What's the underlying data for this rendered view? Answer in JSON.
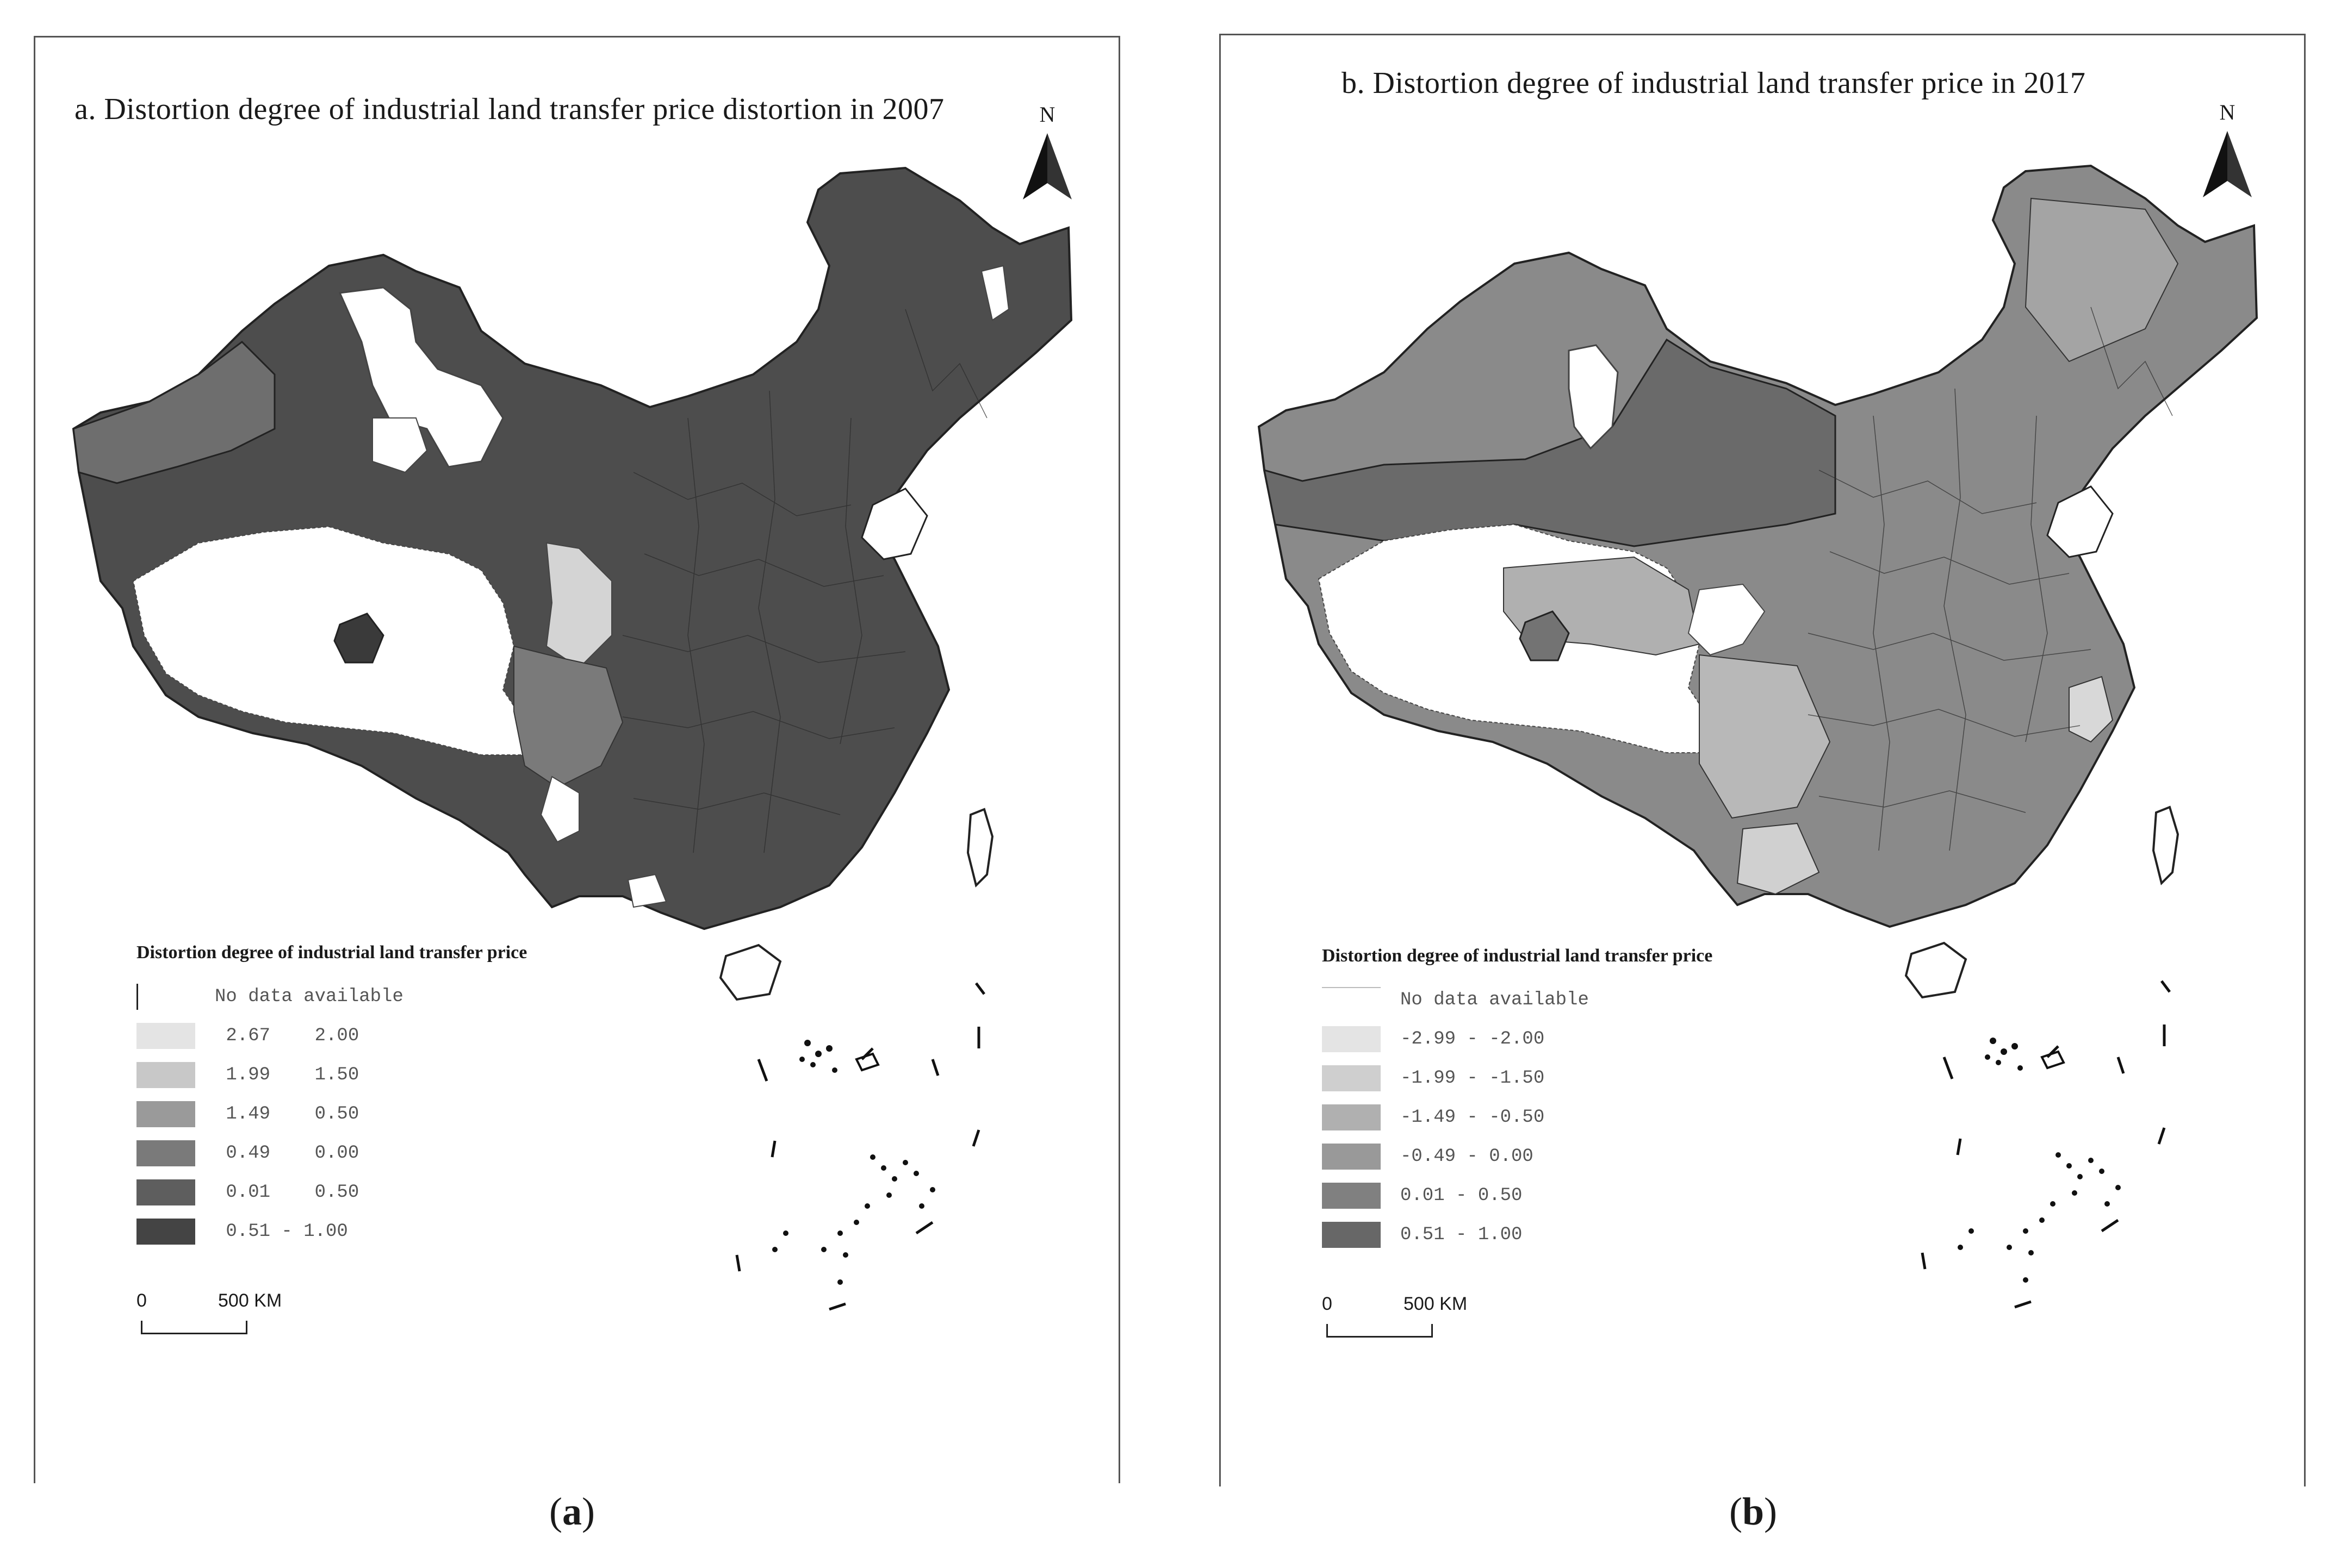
{
  "panels": [
    {
      "title": "a. Distortion degree of industrial land transfer price distortion in 2007",
      "north": "N",
      "legend": {
        "title": "Distortion degree of industrial land transfer price",
        "items": [
          {
            "label": "No data available",
            "color": "#ffffff"
          },
          {
            "label": " 2.67    2.00",
            "color": "#e4e4e4"
          },
          {
            "label": " 1.99    1.50",
            "color": "#c8c8c8"
          },
          {
            "label": " 1.49    0.50",
            "color": "#9a9a9a"
          },
          {
            "label": " 0.49    0.00",
            "color": "#7a7a7a"
          },
          {
            "label": " 0.01    0.50",
            "color": "#5e5e5e"
          },
          {
            "label": " 0.51 - 1.00",
            "color": "#444444"
          }
        ]
      },
      "scale": {
        "zero": "0",
        "distance": "500 KM"
      },
      "caption_letter": "a"
    },
    {
      "title": "b. Distortion degree of industrial land transfer price in 2017",
      "north": "N",
      "legend": {
        "title": "Distortion degree of industrial land transfer price",
        "items": [
          {
            "label": "No data available",
            "color": "#ffffff"
          },
          {
            "label": "-2.99 - -2.00",
            "color": "#e4e4e4"
          },
          {
            "label": "-1.99 - -1.50",
            "color": "#cfcfcf"
          },
          {
            "label": "-1.49 - -0.50",
            "color": "#b0b0b0"
          },
          {
            "label": "-0.49 - 0.00",
            "color": "#999999"
          },
          {
            "label": "0.01 - 0.50",
            "color": "#808080"
          },
          {
            "label": "0.51 - 1.00",
            "color": "#676767"
          }
        ]
      },
      "scale": {
        "zero": "0",
        "distance": "500 KM"
      },
      "caption_letter": "b"
    }
  ],
  "colors": {
    "panel_a_dominant": "#4d4d4d",
    "panel_a_secondary": "#6e6e6e",
    "panel_b_dominant": "#8a8a8a",
    "panel_b_secondary": "#a8a8a8",
    "no_data": "#ffffff",
    "boundary": "#222222"
  }
}
